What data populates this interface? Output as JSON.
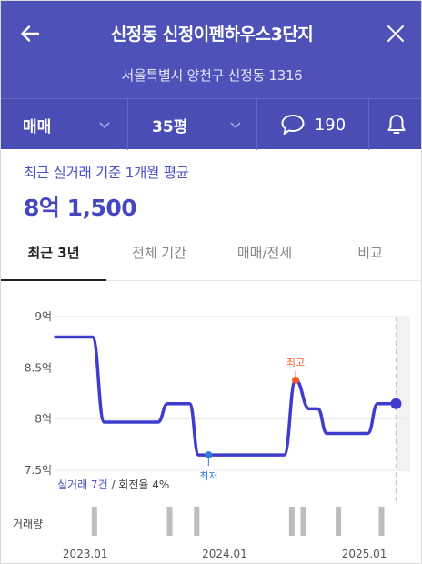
{
  "header": {
    "title": "신정동 신정이펜하우스3단지",
    "address": "서울특별시 양천구 신정동 1316"
  },
  "filters": {
    "deal_type": "매매",
    "size": "35평",
    "comment_count": "190"
  },
  "summary": {
    "label": "최근 실거래 기준 1개월 평균",
    "price": "8억 1,500"
  },
  "tabs": [
    {
      "label": "최근 3년",
      "active": true
    },
    {
      "label": "전체 기간",
      "active": false
    },
    {
      "label": "매매/전세",
      "active": false
    },
    {
      "label": "비교",
      "active": false
    }
  ],
  "chart": {
    "stats_label": "실거래 7건",
    "stats_rest": " / 회전율 4%",
    "volume_label": "거래량",
    "high_label": "최고",
    "low_label": "최저"
  },
  "colors": {
    "header_bg": "#4e52b8",
    "line": "#3f3ccc",
    "high": "#f05a28",
    "low": "#2d7be0",
    "volume": "#bdbdbd"
  },
  "chart_data": {
    "type": "line",
    "title": "",
    "xlabel": "",
    "ylabel": "",
    "y_unit": "억",
    "ylim": [
      7.5,
      9
    ],
    "y_ticks": [
      {
        "value": 9,
        "label": "9억"
      },
      {
        "value": 8.5,
        "label": "8.5억"
      },
      {
        "value": 8,
        "label": "8억"
      },
      {
        "value": 7.5,
        "label": "7.5억"
      }
    ],
    "x_ticks": [
      "2023.01",
      "2024.01",
      "2025.01"
    ],
    "xlim": [
      "2022-10-15",
      "2025-05-01"
    ],
    "series": [
      {
        "points": [
          {
            "x": "2022-10-15",
            "y": 8.8
          },
          {
            "x": "2023-01-20",
            "y": 8.8
          },
          {
            "x": "2023-02-20",
            "y": 7.97
          },
          {
            "x": "2023-07-10",
            "y": 7.97
          },
          {
            "x": "2023-08-05",
            "y": 8.15
          },
          {
            "x": "2023-10-01",
            "y": 8.15
          },
          {
            "x": "2023-10-25",
            "y": 7.65
          },
          {
            "x": "2024-06-05",
            "y": 7.65
          },
          {
            "x": "2024-07-05",
            "y": 8.38
          },
          {
            "x": "2024-08-10",
            "y": 8.1
          },
          {
            "x": "2024-09-01",
            "y": 8.1
          },
          {
            "x": "2024-09-25",
            "y": 7.86
          },
          {
            "x": "2025-01-10",
            "y": 7.86
          },
          {
            "x": "2025-02-05",
            "y": 8.15
          },
          {
            "x": "2025-03-25",
            "y": 8.15
          }
        ]
      }
    ],
    "highlights": {
      "high": {
        "x": "2024-07-05",
        "y": 8.38
      },
      "low": {
        "x": "2023-11-20",
        "y": 7.65
      },
      "current": {
        "x": "2025-03-25",
        "y": 8.15
      }
    },
    "projection_start": "2025-03-25",
    "grid": true,
    "volume": [
      {
        "x": "2023-01-25",
        "count": 1
      },
      {
        "x": "2023-08-10",
        "count": 1
      },
      {
        "x": "2023-10-20",
        "count": 1
      },
      {
        "x": "2024-06-25",
        "count": 1
      },
      {
        "x": "2024-07-25",
        "count": 1
      },
      {
        "x": "2024-10-25",
        "count": 1
      },
      {
        "x": "2025-02-15",
        "count": 1
      }
    ]
  }
}
